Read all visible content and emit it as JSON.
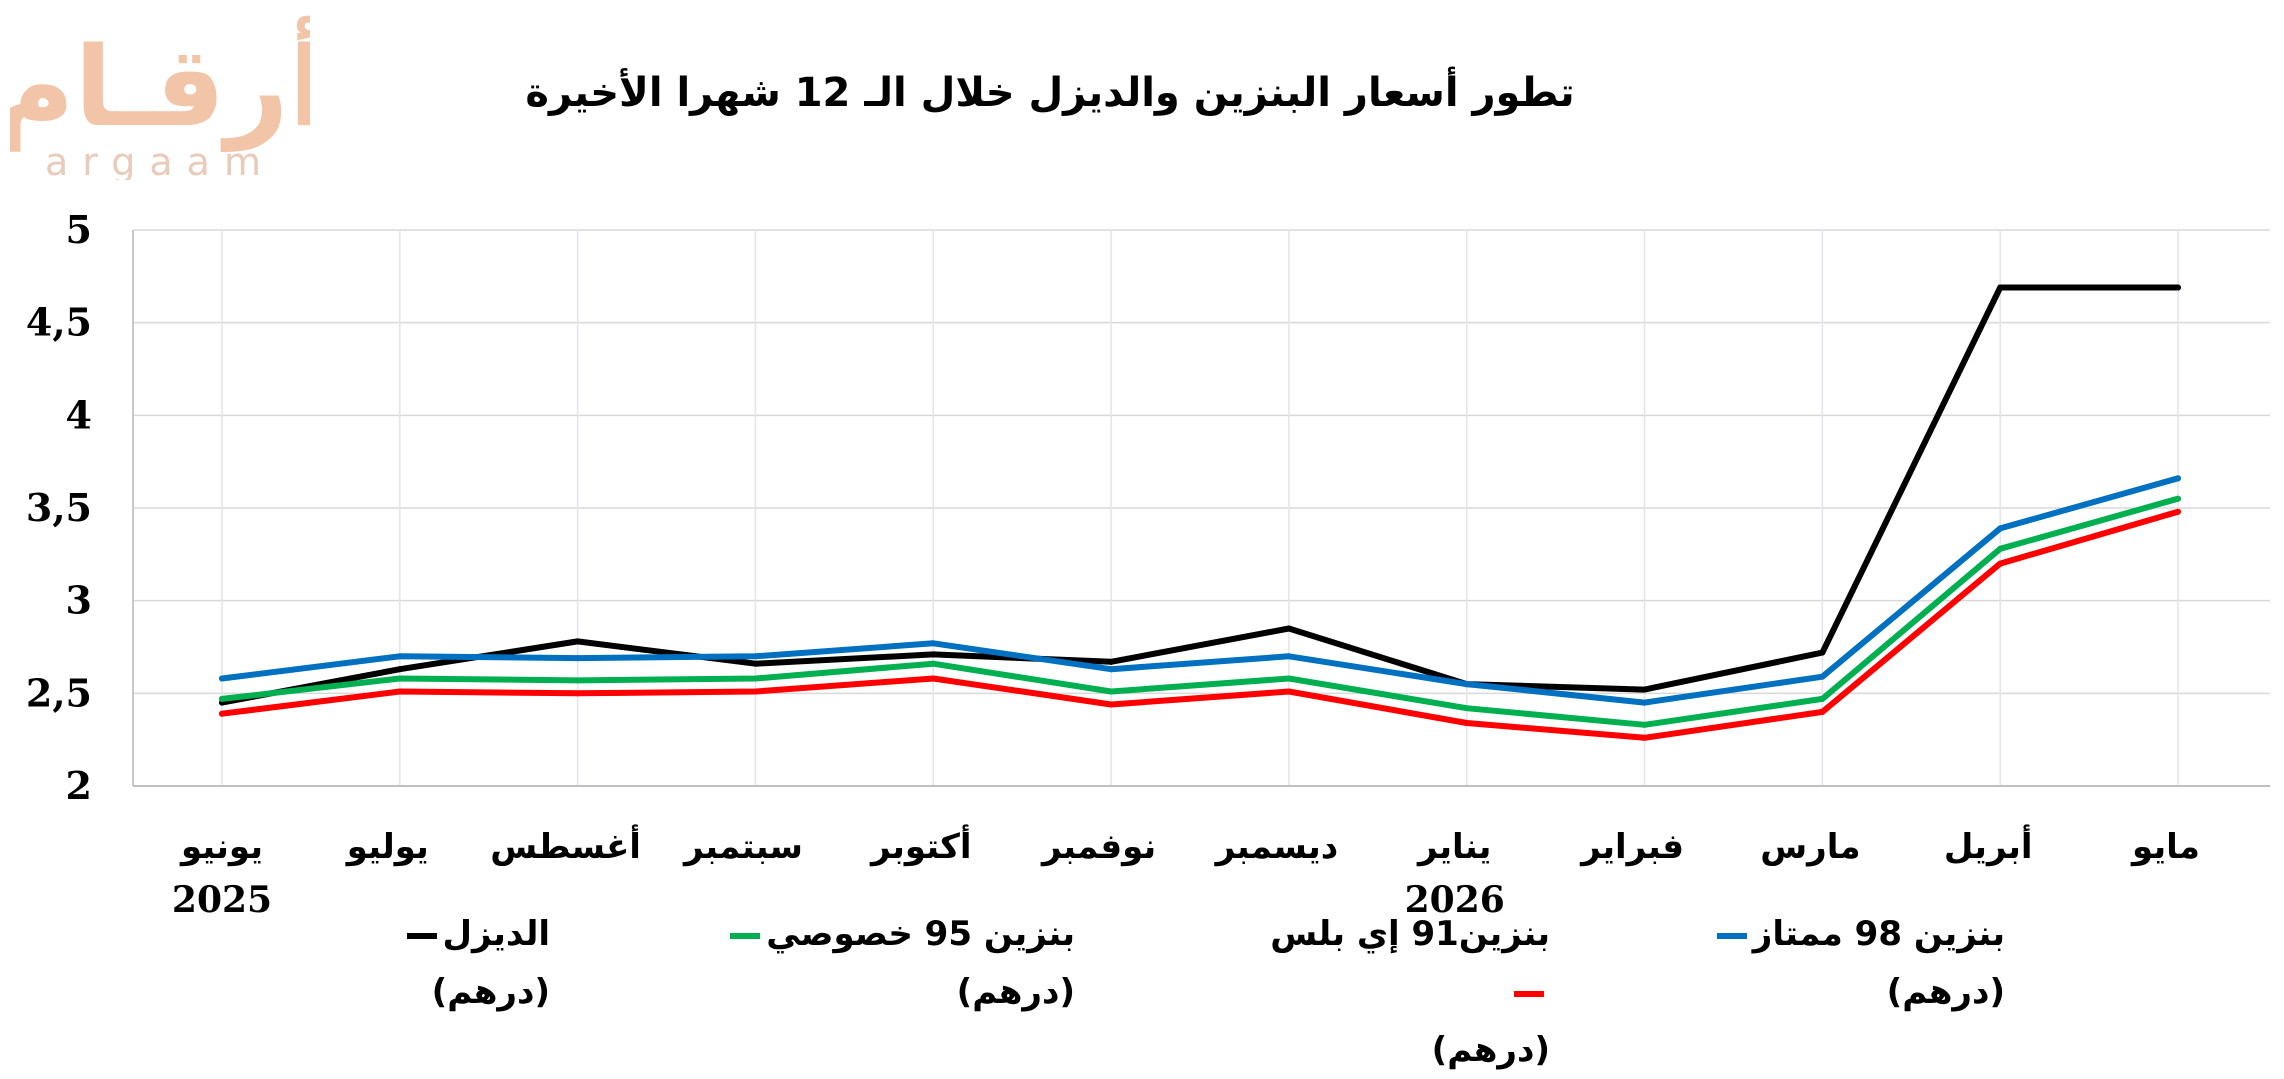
{
  "logo": {
    "arabic": "أرقـام",
    "latin": "argaam"
  },
  "chart_data": {
    "type": "line",
    "title": "تطور أسعار البنزين والديزل خلال الـ 12 شهرا الأخيرة",
    "categories": [
      "يونيو",
      "يوليو",
      "أغسطس",
      "سبتمبر",
      "أكتوبر",
      "نوفمبر",
      "ديسمبر",
      "يناير",
      "فبراير",
      "مارس",
      "أبريل",
      "مايو"
    ],
    "category_years": {
      "0": "2025",
      "7": "2026"
    },
    "ylim": [
      2,
      5
    ],
    "yticks": [
      "2",
      "2,5",
      "3",
      "3,5",
      "4",
      "4,5",
      "5"
    ],
    "grid": true,
    "legend_position": "bottom",
    "series": [
      {
        "name": "الديزل",
        "unit": "(درهم)",
        "color": "#000000",
        "values": [
          2.45,
          2.63,
          2.78,
          2.66,
          2.71,
          2.67,
          2.85,
          2.55,
          2.52,
          2.72,
          4.69,
          4.69
        ]
      },
      {
        "name": "بنزين 95 خصوصي",
        "unit": "(درهم)",
        "color": "#00b050",
        "values": [
          2.47,
          2.58,
          2.57,
          2.58,
          2.66,
          2.51,
          2.58,
          2.42,
          2.33,
          2.47,
          3.28,
          3.55
        ]
      },
      {
        "name": "بنزين91 إي بلس",
        "unit": "(درهم)",
        "color": "#ff0000",
        "values": [
          2.39,
          2.51,
          2.5,
          2.51,
          2.58,
          2.44,
          2.51,
          2.34,
          2.26,
          2.4,
          3.2,
          3.48
        ]
      },
      {
        "name": "بنزين 98 ممتاز",
        "unit": "(درهم)",
        "color": "#0070c0",
        "values": [
          2.58,
          2.7,
          2.69,
          2.7,
          2.77,
          2.63,
          2.7,
          2.55,
          2.45,
          2.59,
          3.39,
          3.66
        ]
      }
    ]
  }
}
